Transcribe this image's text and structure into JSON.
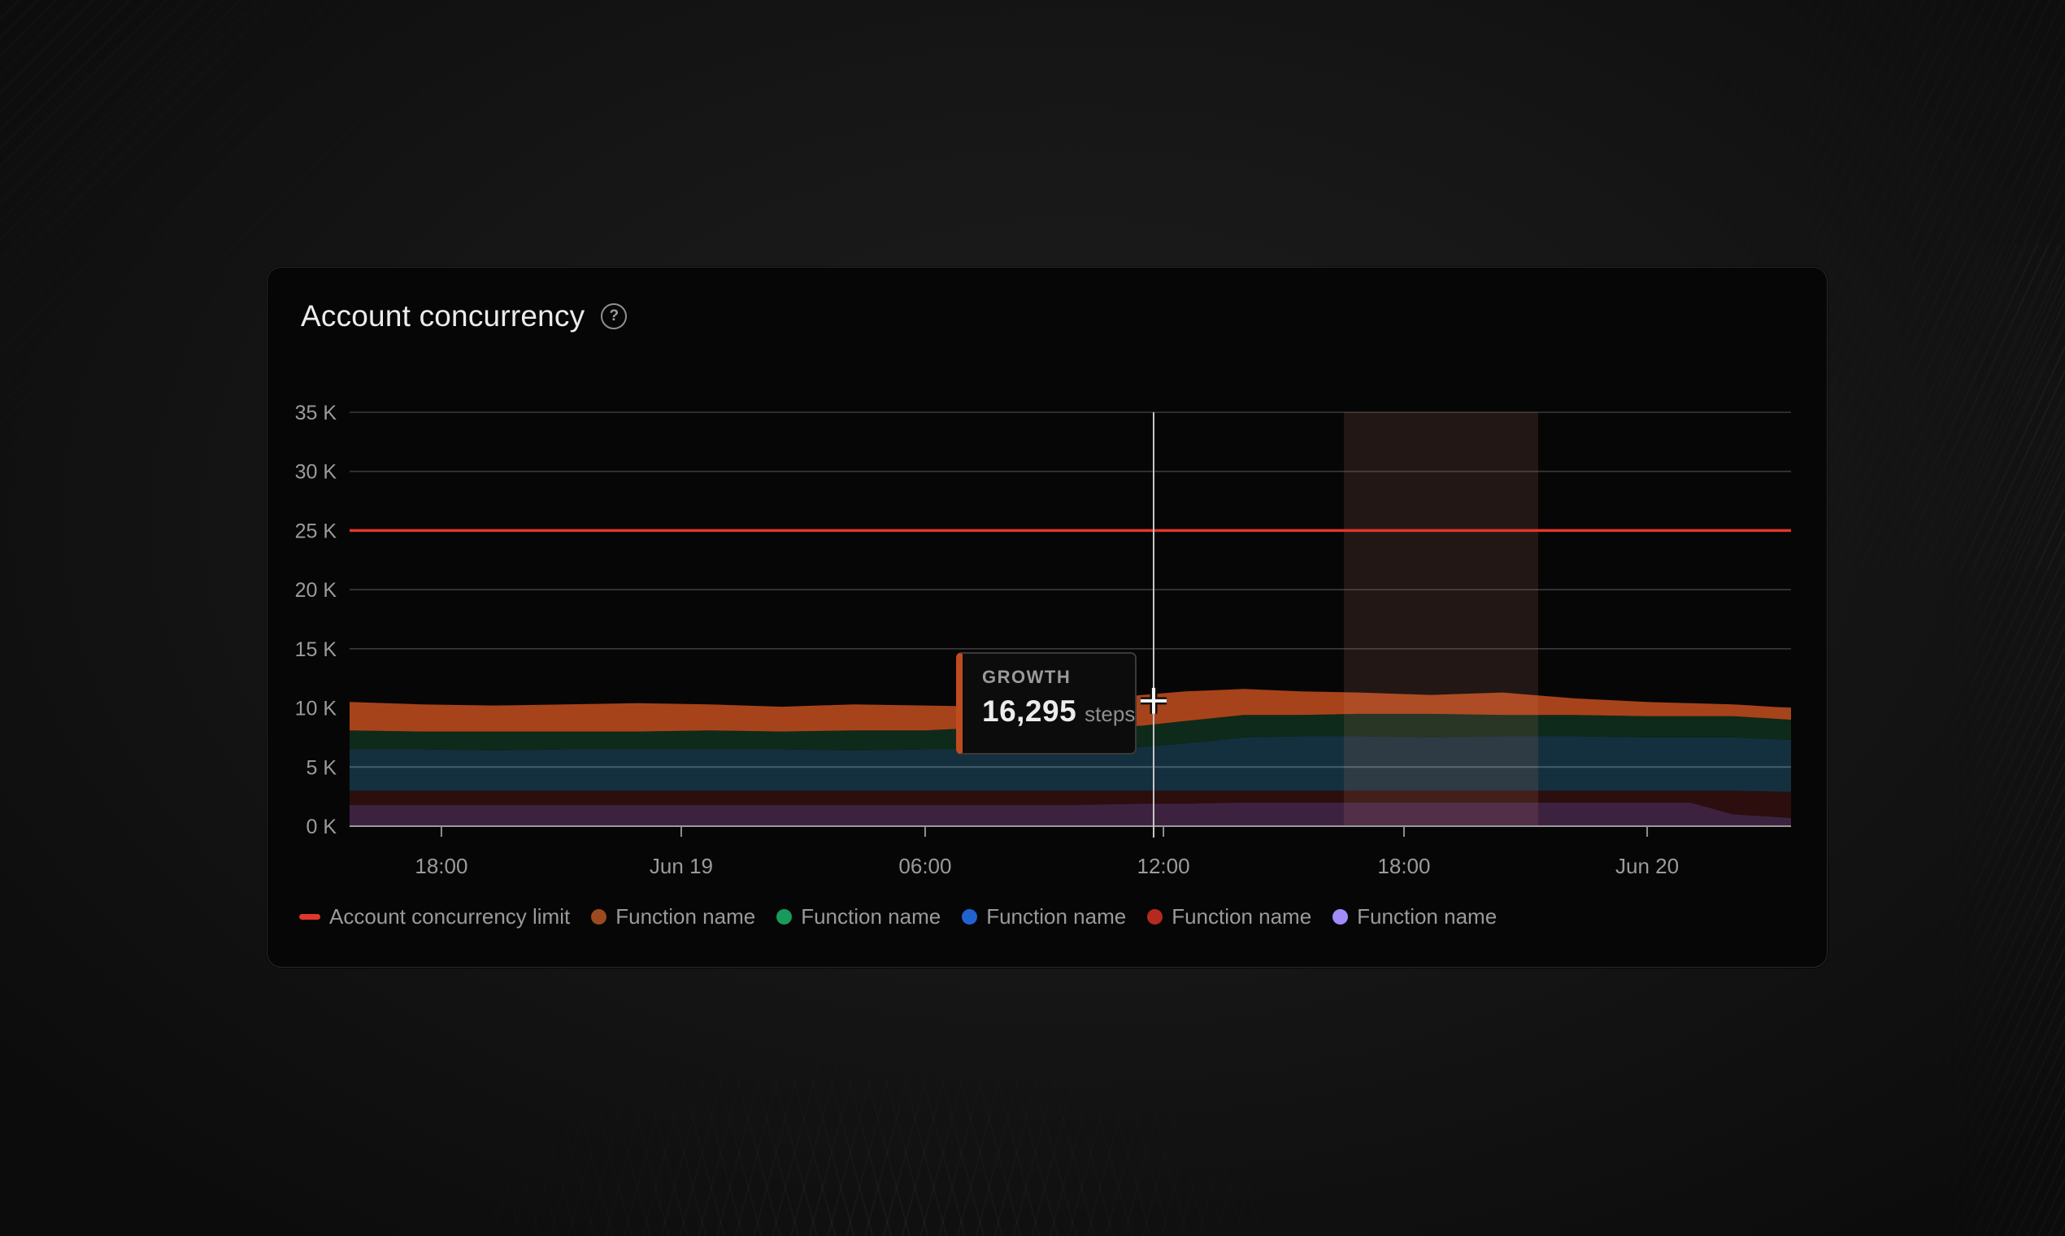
{
  "header": {
    "title": "Account concurrency",
    "help_icon": "?"
  },
  "tooltip": {
    "label": "GROWTH",
    "value": "16,295",
    "unit": "steps"
  },
  "legend": {
    "items": [
      {
        "type": "dash",
        "color": "#e0372b",
        "label": "Account concurrency limit"
      },
      {
        "type": "dot",
        "color": "#9c4a1f",
        "label": "Function name"
      },
      {
        "type": "dot",
        "color": "#189a5c",
        "label": "Function name"
      },
      {
        "type": "dot",
        "color": "#2162d1",
        "label": "Function name"
      },
      {
        "type": "dot",
        "color": "#b52a1e",
        "label": "Function name"
      },
      {
        "type": "dot",
        "color": "#a18cfa",
        "label": "Function name"
      }
    ]
  },
  "chart_data": {
    "type": "area",
    "stacked": true,
    "title": "Account concurrency",
    "xlabel": "",
    "ylabel": "",
    "ylim": [
      0,
      35
    ],
    "grid": true,
    "legend_position": "bottom",
    "y_unit": "K",
    "y_ticks": [
      {
        "label": "0 K",
        "value": 0
      },
      {
        "label": "5 K",
        "value": 5
      },
      {
        "label": "10 K",
        "value": 10
      },
      {
        "label": "15 K",
        "value": 15
      },
      {
        "label": "20 K",
        "value": 20
      },
      {
        "label": "25 K",
        "value": 25
      },
      {
        "label": "30 K",
        "value": 30
      },
      {
        "label": "35 K",
        "value": 35
      }
    ],
    "overlay_gridline_value": 5,
    "x_ticks": [
      {
        "label": "18:00",
        "pos": 0.0637
      },
      {
        "label": "Jun 19",
        "pos": 0.2301
      },
      {
        "label": "06:00",
        "pos": 0.3993
      },
      {
        "label": "12:00",
        "pos": 0.5646
      },
      {
        "label": "18:00",
        "pos": 0.7315
      },
      {
        "label": "Jun 20",
        "pos": 0.9002
      }
    ],
    "x": [
      0,
      0.05,
      0.1,
      0.15,
      0.2,
      0.25,
      0.3,
      0.35,
      0.4,
      0.45,
      0.5,
      0.55,
      0.58,
      0.62,
      0.66,
      0.7,
      0.75,
      0.8,
      0.85,
      0.9,
      0.93,
      0.96,
      1.0
    ],
    "series": [
      {
        "name": "Function name",
        "color": "#a18cfa",
        "fill": "#3d2240",
        "values": [
          1.8,
          1.8,
          1.8,
          1.8,
          1.8,
          1.8,
          1.8,
          1.8,
          1.8,
          1.8,
          1.8,
          1.9,
          1.9,
          2.0,
          2.0,
          2.0,
          2.0,
          2.0,
          2.0,
          2.0,
          2.0,
          1.0,
          0.7
        ]
      },
      {
        "name": "Function name",
        "color": "#b52a1e",
        "fill": "#2c0e0e",
        "values": [
          1.2,
          1.2,
          1.2,
          1.2,
          1.2,
          1.2,
          1.2,
          1.2,
          1.2,
          1.2,
          1.2,
          1.1,
          1.1,
          1.0,
          1.0,
          1.0,
          1.0,
          1.0,
          1.0,
          1.0,
          1.0,
          2.0,
          2.2
        ]
      },
      {
        "name": "Function name",
        "color": "#2162d1",
        "fill": "#14303f",
        "values": [
          3.5,
          3.5,
          3.4,
          3.5,
          3.5,
          3.5,
          3.5,
          3.4,
          3.5,
          3.5,
          3.5,
          3.7,
          4.0,
          4.5,
          4.6,
          4.6,
          4.5,
          4.6,
          4.6,
          4.5,
          4.5,
          4.5,
          4.4
        ]
      },
      {
        "name": "Function name",
        "color": "#189a5c",
        "fill": "#0e2a1a",
        "values": [
          1.6,
          1.5,
          1.6,
          1.5,
          1.5,
          1.6,
          1.5,
          1.7,
          1.6,
          1.9,
          1.7,
          1.8,
          1.9,
          1.9,
          1.8,
          1.9,
          2.0,
          1.8,
          1.8,
          1.8,
          1.8,
          1.8,
          1.7
        ]
      },
      {
        "name": "Function name",
        "color": "#9c4a1f",
        "fill": "#a7431a",
        "values": [
          2.4,
          2.3,
          2.2,
          2.3,
          2.4,
          2.2,
          2.1,
          2.2,
          2.1,
          1.7,
          2.3,
          2.6,
          2.5,
          2.2,
          2.0,
          1.8,
          1.6,
          1.9,
          1.4,
          1.2,
          1.1,
          1.0,
          1.0
        ]
      }
    ],
    "limit_line": {
      "label": "Account concurrency limit",
      "value": 25,
      "color": "#e0372b"
    },
    "highlight_band": {
      "from": 0.6898,
      "to": 0.8246,
      "color": "rgba(221,138,115,0.13)"
    },
    "crosshair": {
      "pos": 0.5578,
      "y_value": 10.6
    }
  }
}
